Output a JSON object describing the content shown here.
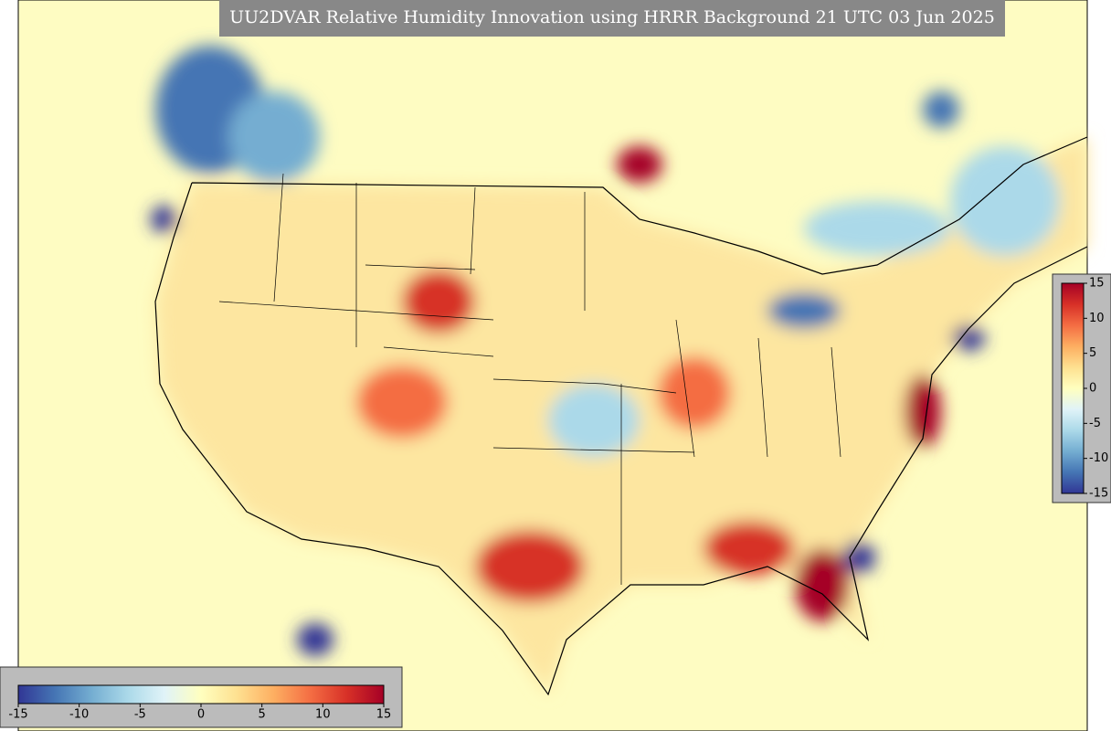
{
  "title": "UU2DVAR Relative Humidity Innovation using HRRR Background 21 UTC 03 Jun 2025",
  "colorbar_horizontal": {
    "ticks": [
      -15,
      -10,
      -5,
      0,
      5,
      10,
      15
    ]
  },
  "colorbar_vertical": {
    "ticks": [
      15,
      10,
      5,
      0,
      -5,
      -10,
      -15
    ]
  },
  "colormap": [
    "#313695",
    "#4575b4",
    "#74add1",
    "#abd9e9",
    "#e0f3f8",
    "#ffffbf",
    "#fee090",
    "#fdae61",
    "#f46d43",
    "#d73027",
    "#a50026"
  ]
}
